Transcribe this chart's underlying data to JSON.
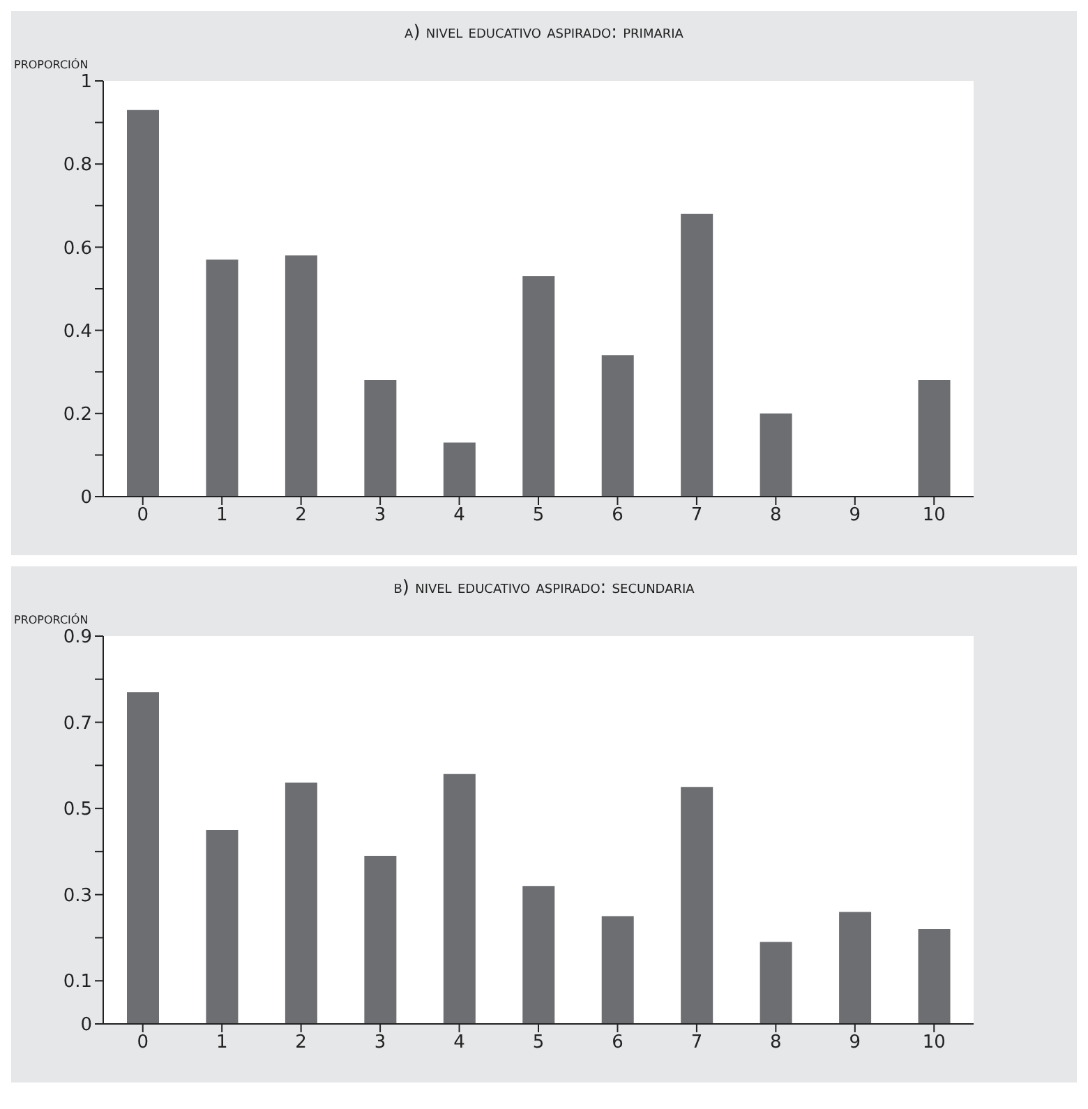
{
  "chart_data": [
    {
      "type": "bar",
      "title": "a) nivel educativo aspirado: primaria",
      "ylabel": "proporción",
      "categories": [
        "0",
        "1",
        "2",
        "3",
        "4",
        "5",
        "6",
        "7",
        "8",
        "9",
        "10"
      ],
      "values": [
        0.93,
        0.57,
        0.58,
        0.28,
        0.13,
        0.53,
        0.34,
        0.68,
        0.2,
        0,
        0.28
      ],
      "color": "#6d6e71",
      "ylim": [
        0,
        1
      ],
      "yticks": [
        0,
        {
          "value": 0.1,
          "label": null
        },
        0.2,
        {
          "value": 0.3,
          "label": null
        },
        0.4,
        {
          "value": 0.5,
          "label": null
        },
        0.6,
        {
          "value": 0.7,
          "label": null
        },
        0.8,
        {
          "value": 0.9,
          "label": null
        },
        1
      ]
    },
    {
      "type": "bar",
      "title": "b) nivel educativo aspirado: secundaria",
      "ylabel": "proporción",
      "categories": [
        "0",
        "1",
        "2",
        "3",
        "4",
        "5",
        "6",
        "7",
        "8",
        "9",
        "10"
      ],
      "values": [
        0.77,
        0.45,
        0.56,
        0.39,
        0.58,
        0.32,
        0.25,
        0.55,
        0.19,
        0.26,
        0.22
      ],
      "color": "#6d6e71",
      "ylim": [
        0,
        0.9
      ],
      "yticks": [
        0,
        0.1,
        {
          "value": 0.2,
          "label": null
        },
        0.3,
        {
          "value": 0.4,
          "label": null
        },
        0.5,
        {
          "value": 0.6,
          "label": null
        },
        0.7,
        {
          "value": 0.8,
          "label": null
        },
        0.9
      ]
    }
  ]
}
